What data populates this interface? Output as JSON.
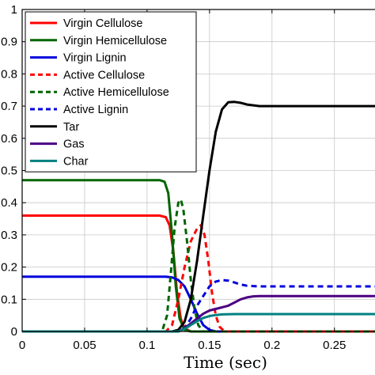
{
  "chart_data": {
    "type": "line",
    "xlabel": "Time (sec)",
    "ylabel": "",
    "xlim": [
      0,
      0.285
    ],
    "ylim": [
      0,
      1
    ],
    "xticks": [
      0,
      0.05,
      0.1,
      0.15,
      0.2,
      0.25
    ],
    "xtick_labels": [
      "0",
      "0.05",
      "0.1",
      "0.15",
      "0.2",
      "0.25"
    ],
    "yticks": [
      0,
      0.1,
      0.2,
      0.3,
      0.4,
      0.5,
      0.6,
      0.7,
      0.8,
      0.9,
      1
    ],
    "ytick_labels": [
      "0",
      "0.1",
      "0.2",
      "0.3",
      "0.4",
      "0.5",
      "0.6",
      "0.7",
      "0.8",
      "0.9",
      "1"
    ],
    "grid": true,
    "legend_position": "top-left",
    "series": [
      {
        "name": "Virgin Cellulose",
        "color": "#ff0000",
        "dash": "solid",
        "points": [
          [
            0,
            0.36
          ],
          [
            0.11,
            0.36
          ],
          [
            0.115,
            0.355
          ],
          [
            0.118,
            0.33
          ],
          [
            0.121,
            0.25
          ],
          [
            0.124,
            0.12
          ],
          [
            0.127,
            0.04
          ],
          [
            0.13,
            0.01
          ],
          [
            0.135,
            0
          ],
          [
            0.285,
            0
          ]
        ]
      },
      {
        "name": "Virgin Hemicellulose",
        "color": "#006400",
        "dash": "solid",
        "points": [
          [
            0,
            0.47
          ],
          [
            0.11,
            0.47
          ],
          [
            0.114,
            0.465
          ],
          [
            0.117,
            0.43
          ],
          [
            0.12,
            0.3
          ],
          [
            0.123,
            0.14
          ],
          [
            0.126,
            0.04
          ],
          [
            0.13,
            0.005
          ],
          [
            0.135,
            0
          ],
          [
            0.285,
            0
          ]
        ]
      },
      {
        "name": "Virgin Lignin",
        "color": "#0000dd",
        "dash": "solid",
        "points": [
          [
            0,
            0.17
          ],
          [
            0.115,
            0.17
          ],
          [
            0.12,
            0.168
          ],
          [
            0.125,
            0.16
          ],
          [
            0.13,
            0.14
          ],
          [
            0.135,
            0.1
          ],
          [
            0.14,
            0.055
          ],
          [
            0.145,
            0.02
          ],
          [
            0.15,
            0.005
          ],
          [
            0.155,
            0
          ],
          [
            0.285,
            0
          ]
        ]
      },
      {
        "name": "Active Cellulose",
        "color": "#ff0000",
        "dash": "dashed",
        "points": [
          [
            0,
            0
          ],
          [
            0.115,
            0
          ],
          [
            0.12,
            0.02
          ],
          [
            0.125,
            0.1
          ],
          [
            0.13,
            0.2
          ],
          [
            0.135,
            0.28
          ],
          [
            0.14,
            0.32
          ],
          [
            0.143,
            0.33
          ],
          [
            0.146,
            0.3
          ],
          [
            0.149,
            0.22
          ],
          [
            0.152,
            0.12
          ],
          [
            0.155,
            0.05
          ],
          [
            0.158,
            0.015
          ],
          [
            0.162,
            0
          ],
          [
            0.285,
            0
          ]
        ]
      },
      {
        "name": "Active Hemicellulose",
        "color": "#006400",
        "dash": "dashed",
        "points": [
          [
            0,
            0
          ],
          [
            0.112,
            0
          ],
          [
            0.116,
            0.05
          ],
          [
            0.119,
            0.18
          ],
          [
            0.122,
            0.32
          ],
          [
            0.125,
            0.4
          ],
          [
            0.127,
            0.41
          ],
          [
            0.129,
            0.38
          ],
          [
            0.132,
            0.28
          ],
          [
            0.135,
            0.16
          ],
          [
            0.138,
            0.07
          ],
          [
            0.141,
            0.02
          ],
          [
            0.145,
            0
          ],
          [
            0.285,
            0
          ]
        ]
      },
      {
        "name": "Active Lignin",
        "color": "#0000dd",
        "dash": "dashed",
        "points": [
          [
            0,
            0
          ],
          [
            0.125,
            0
          ],
          [
            0.13,
            0.01
          ],
          [
            0.135,
            0.04
          ],
          [
            0.14,
            0.08
          ],
          [
            0.145,
            0.11
          ],
          [
            0.15,
            0.14
          ],
          [
            0.155,
            0.155
          ],
          [
            0.16,
            0.16
          ],
          [
            0.165,
            0.158
          ],
          [
            0.17,
            0.152
          ],
          [
            0.175,
            0.146
          ],
          [
            0.18,
            0.142
          ],
          [
            0.19,
            0.14
          ],
          [
            0.285,
            0.14
          ]
        ]
      },
      {
        "name": "Tar",
        "color": "#000000",
        "dash": "solid",
        "points": [
          [
            0,
            0
          ],
          [
            0.12,
            0
          ],
          [
            0.125,
            0.005
          ],
          [
            0.13,
            0.03
          ],
          [
            0.135,
            0.1
          ],
          [
            0.14,
            0.22
          ],
          [
            0.145,
            0.36
          ],
          [
            0.15,
            0.5
          ],
          [
            0.155,
            0.62
          ],
          [
            0.16,
            0.69
          ],
          [
            0.165,
            0.712
          ],
          [
            0.17,
            0.713
          ],
          [
            0.175,
            0.71
          ],
          [
            0.18,
            0.705
          ],
          [
            0.19,
            0.7
          ],
          [
            0.285,
            0.7
          ]
        ]
      },
      {
        "name": "Gas",
        "color": "#4b0082",
        "dash": "solid",
        "points": [
          [
            0,
            0
          ],
          [
            0.125,
            0
          ],
          [
            0.13,
            0.01
          ],
          [
            0.135,
            0.025
          ],
          [
            0.14,
            0.04
          ],
          [
            0.145,
            0.055
          ],
          [
            0.15,
            0.065
          ],
          [
            0.155,
            0.07
          ],
          [
            0.16,
            0.075
          ],
          [
            0.165,
            0.08
          ],
          [
            0.17,
            0.09
          ],
          [
            0.175,
            0.1
          ],
          [
            0.18,
            0.106
          ],
          [
            0.185,
            0.109
          ],
          [
            0.19,
            0.11
          ],
          [
            0.285,
            0.11
          ]
        ]
      },
      {
        "name": "Char",
        "color": "#008080",
        "dash": "solid",
        "points": [
          [
            0,
            0
          ],
          [
            0.125,
            0
          ],
          [
            0.13,
            0.008
          ],
          [
            0.135,
            0.02
          ],
          [
            0.14,
            0.032
          ],
          [
            0.145,
            0.042
          ],
          [
            0.15,
            0.048
          ],
          [
            0.155,
            0.051
          ],
          [
            0.16,
            0.053
          ],
          [
            0.17,
            0.054
          ],
          [
            0.285,
            0.054
          ]
        ]
      }
    ]
  }
}
